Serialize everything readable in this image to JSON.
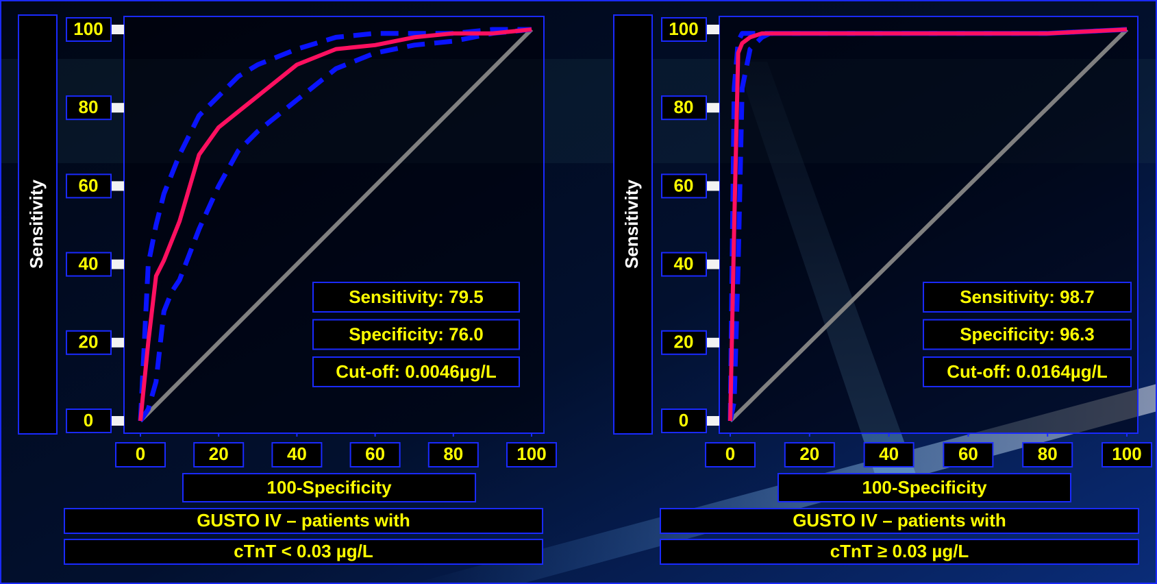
{
  "chart_data": [
    {
      "type": "line",
      "ylabel": "Sensitivity",
      "xlabel": "100-Specificity",
      "xlim": [
        0,
        100
      ],
      "ylim": [
        0,
        100
      ],
      "xticks": [
        0,
        20,
        40,
        60,
        80,
        100
      ],
      "yticks": [
        0,
        20,
        40,
        60,
        80,
        100
      ],
      "x": [
        0,
        2,
        4,
        6,
        8,
        10,
        15,
        20,
        25,
        30,
        40,
        50,
        60,
        70,
        80,
        90,
        100
      ],
      "series": [
        {
          "color": "#808080",
          "style": "solid",
          "values": [
            0,
            2,
            4,
            6,
            8,
            10,
            15,
            20,
            25,
            30,
            40,
            50,
            60,
            70,
            80,
            90,
            100
          ]
        },
        {
          "color": "#0a14ff",
          "style": "dashed",
          "values": [
            0,
            40,
            50,
            58,
            63,
            68,
            78,
            83,
            88,
            91,
            95,
            98,
            99,
            99,
            99,
            100,
            100
          ]
        },
        {
          "color": "#0a14ff",
          "style": "dashed",
          "values": [
            0,
            3,
            10,
            28,
            33,
            36,
            49,
            60,
            69,
            74,
            82,
            90,
            94,
            96,
            97,
            99,
            100
          ]
        },
        {
          "color": "#ff1060",
          "style": "solid",
          "values": [
            0,
            20,
            37,
            41,
            46,
            51,
            68,
            75,
            79,
            83,
            91,
            95,
            96,
            98,
            99,
            99,
            100
          ]
        }
      ],
      "annotations": [
        "Sensitivity: 79.5",
        "Specificity: 76.0",
        "Cut-off: 0.0046µg/L"
      ],
      "caption": [
        "GUSTO IV – patients with",
        "cTnT < 0.03 µg/L"
      ]
    },
    {
      "type": "line",
      "ylabel": "Sensitivity",
      "xlabel": "100-Specificity",
      "xlim": [
        0,
        100
      ],
      "ylim": [
        0,
        100
      ],
      "xticks": [
        0,
        20,
        40,
        60,
        80,
        100
      ],
      "yticks": [
        0,
        20,
        40,
        60,
        80,
        100
      ],
      "x": [
        0,
        1,
        2,
        3,
        5,
        8,
        10,
        20,
        40,
        60,
        80,
        100
      ],
      "series": [
        {
          "color": "#808080",
          "style": "solid",
          "values": [
            0,
            1,
            2,
            3,
            5,
            8,
            10,
            20,
            40,
            60,
            80,
            100
          ]
        },
        {
          "color": "#0a14ff",
          "style": "dashed",
          "values": [
            0,
            85,
            97,
            99,
            99,
            99,
            99,
            99,
            99,
            99,
            99,
            100
          ]
        },
        {
          "color": "#0a14ff",
          "style": "dashed",
          "values": [
            0,
            5,
            40,
            85,
            95,
            98,
            99,
            99,
            99,
            99,
            99,
            100
          ]
        },
        {
          "color": "#ff1060",
          "style": "solid",
          "values": [
            0,
            50,
            94,
            96.5,
            98,
            99,
            99,
            99,
            99,
            99,
            99,
            100
          ]
        }
      ],
      "annotations": [
        "Sensitivity: 98.7",
        "Specificity: 96.3",
        "Cut-off: 0.0164µg/L"
      ],
      "caption": [
        "GUSTO IV – patients with",
        "cTnT ≥ 0.03 µg/L"
      ]
    }
  ]
}
